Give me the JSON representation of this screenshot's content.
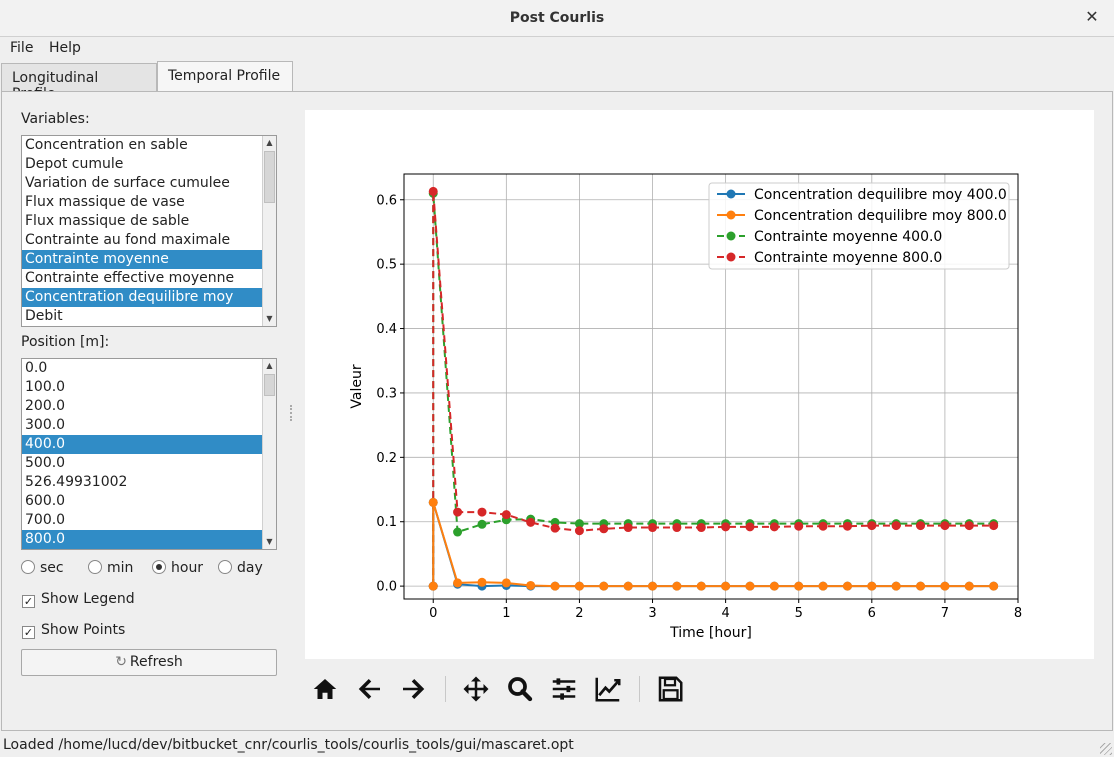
{
  "window": {
    "title": "Post Courlis",
    "close_glyph": "✕"
  },
  "menu": {
    "file": "File",
    "help": "Help"
  },
  "tabs": [
    {
      "label": "Longitudinal Profile",
      "active": false
    },
    {
      "label": "Temporal Profile",
      "active": true
    }
  ],
  "sidebar": {
    "variables_label": "Variables:",
    "variables": [
      {
        "label": "Concentration en sable",
        "selected": false
      },
      {
        "label": "Depot cumule",
        "selected": false
      },
      {
        "label": "Variation de surface cumulee",
        "selected": false
      },
      {
        "label": "Flux massique de vase",
        "selected": false
      },
      {
        "label": "Flux massique de sable",
        "selected": false
      },
      {
        "label": "Contrainte au fond maximale",
        "selected": false
      },
      {
        "label": "Contrainte moyenne",
        "selected": true
      },
      {
        "label": "Contrainte effective moyenne",
        "selected": false
      },
      {
        "label": "Concentration dequilibre moy",
        "selected": true
      },
      {
        "label": "Debit",
        "selected": false
      }
    ],
    "position_label": "Position [m]:",
    "positions": [
      {
        "label": "0.0",
        "selected": false
      },
      {
        "label": "100.0",
        "selected": false
      },
      {
        "label": "200.0",
        "selected": false
      },
      {
        "label": "300.0",
        "selected": false
      },
      {
        "label": "400.0",
        "selected": true
      },
      {
        "label": "500.0",
        "selected": false
      },
      {
        "label": "526.49931002",
        "selected": false
      },
      {
        "label": "600.0",
        "selected": false
      },
      {
        "label": "700.0",
        "selected": false
      },
      {
        "label": "800.0",
        "selected": true
      }
    ],
    "time_units": [
      {
        "label": "sec",
        "checked": false
      },
      {
        "label": "min",
        "checked": false
      },
      {
        "label": "hour",
        "checked": true
      },
      {
        "label": "day",
        "checked": false
      }
    ],
    "show_legend": {
      "label": "Show Legend",
      "checked": true
    },
    "show_points": {
      "label": "Show Points",
      "checked": true
    },
    "refresh_label": "Refresh"
  },
  "toolbar": {
    "icons": [
      "home-icon",
      "back-arrow-icon",
      "forward-arrow-icon",
      "pan-icon",
      "zoom-icon",
      "configure-subplots-icon",
      "edit-axis-icon",
      "save-icon"
    ]
  },
  "status": {
    "text": "Loaded /home/lucd/dev/bitbucket_cnr/courlis_tools/courlis_tools/gui/mascaret.opt"
  },
  "chart_data": {
    "type": "line",
    "title": "",
    "xlabel": "Time [hour]",
    "ylabel": "Valeur",
    "xlim": [
      -0.4,
      8.0
    ],
    "ylim": [
      -0.02,
      0.64
    ],
    "xticks": [
      0,
      1,
      2,
      3,
      4,
      5,
      6,
      7,
      8
    ],
    "yticks": [
      0.0,
      0.1,
      0.2,
      0.3,
      0.4,
      0.5,
      0.6
    ],
    "grid": true,
    "legend_position": "top-right",
    "x": [
      0,
      0,
      0.333,
      0.667,
      1.0,
      1.333,
      1.667,
      2.0,
      2.333,
      2.667,
      3.0,
      3.333,
      3.667,
      4.0,
      4.333,
      4.667,
      5.0,
      5.333,
      5.667,
      6.0,
      6.333,
      6.667,
      7.0,
      7.333,
      7.667
    ],
    "series": [
      {
        "name": "Concentration dequilibre moy 400.0",
        "color": "#1f77b4",
        "style": "solid",
        "values": [
          0.0,
          0.13,
          0.003,
          0.0,
          0.001,
          0.0,
          0.0,
          0.0,
          0.0,
          0.0,
          0.0,
          0.0,
          0.0,
          0.0,
          0.0,
          0.0,
          0.0,
          0.0,
          0.0,
          0.0,
          0.0,
          0.0,
          0.0,
          0.0,
          0.0
        ]
      },
      {
        "name": "Concentration dequilibre moy 800.0",
        "color": "#ff7f0e",
        "style": "solid",
        "values": [
          0.0,
          0.13,
          0.005,
          0.006,
          0.005,
          0.001,
          0.0,
          0.0,
          0.0,
          0.0,
          0.0,
          0.0,
          0.0,
          0.0,
          0.0,
          0.0,
          0.0,
          0.0,
          0.0,
          0.0,
          0.0,
          0.0,
          0.0,
          0.0,
          0.0
        ]
      },
      {
        "name": "Contrainte moyenne 400.0",
        "color": "#2ca02c",
        "style": "dashed",
        "values": [
          0.0,
          0.61,
          0.084,
          0.096,
          0.103,
          0.104,
          0.099,
          0.097,
          0.097,
          0.097,
          0.097,
          0.097,
          0.097,
          0.097,
          0.097,
          0.097,
          0.097,
          0.097,
          0.097,
          0.097,
          0.097,
          0.097,
          0.097,
          0.097,
          0.097
        ]
      },
      {
        "name": "Contrainte moyenne 800.0",
        "color": "#d62728",
        "style": "dashed",
        "values": [
          0.0,
          0.613,
          0.115,
          0.115,
          0.111,
          0.099,
          0.09,
          0.086,
          0.089,
          0.091,
          0.091,
          0.091,
          0.091,
          0.092,
          0.092,
          0.092,
          0.093,
          0.093,
          0.093,
          0.094,
          0.094,
          0.094,
          0.094,
          0.094,
          0.094
        ]
      }
    ]
  }
}
